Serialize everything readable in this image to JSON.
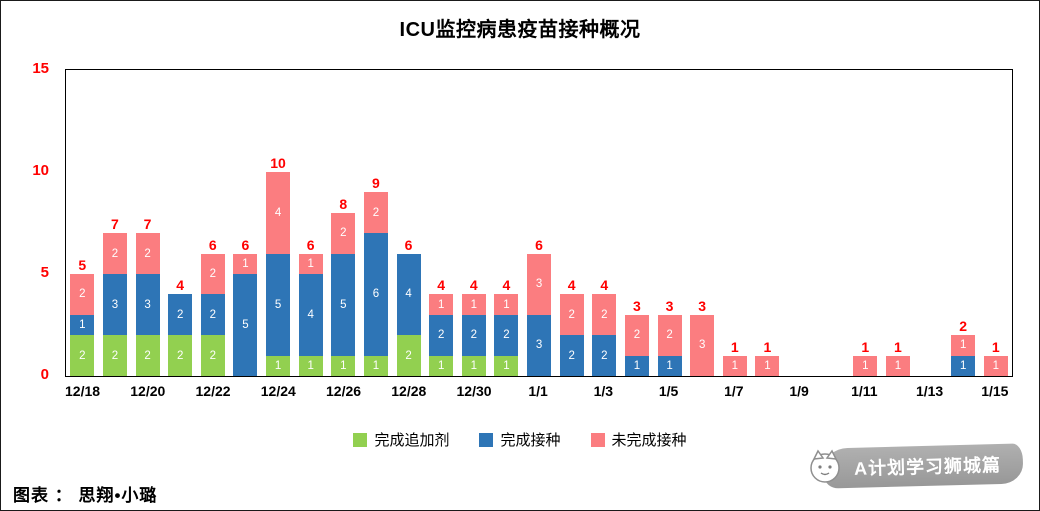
{
  "chart_data": {
    "type": "bar",
    "stacked": true,
    "title": "ICU监控病患疫苗接种概况",
    "categories": [
      "12/18",
      "12/19",
      "12/20",
      "12/21",
      "12/22",
      "12/23",
      "12/24",
      "12/25",
      "12/26",
      "12/27",
      "12/28",
      "12/29",
      "12/30",
      "12/31",
      "1/1",
      "1/2",
      "1/3",
      "1/4",
      "1/5",
      "1/6",
      "1/7",
      "1/8",
      "1/9",
      "1/10",
      "1/11",
      "1/12",
      "1/13",
      "1/14",
      "1/15"
    ],
    "x_tick_labels": [
      "12/18",
      "12/20",
      "12/22",
      "12/24",
      "12/26",
      "12/28",
      "12/30",
      "1/1",
      "1/3",
      "1/5",
      "1/7",
      "1/9",
      "1/11",
      "1/13",
      "1/15"
    ],
    "series": [
      {
        "name": "完成追加剂",
        "color": "#92D050",
        "values": [
          2,
          2,
          2,
          2,
          2,
          0,
          1,
          1,
          1,
          1,
          2,
          1,
          1,
          1,
          0,
          0,
          0,
          0,
          0,
          0,
          0,
          0,
          0,
          0,
          0,
          0,
          0,
          0,
          0
        ]
      },
      {
        "name": "完成接种",
        "color": "#2E75B6",
        "values": [
          1,
          3,
          3,
          2,
          2,
          5,
          5,
          4,
          5,
          6,
          4,
          2,
          2,
          2,
          3,
          2,
          2,
          1,
          1,
          0,
          0,
          0,
          0,
          0,
          0,
          0,
          0,
          1,
          0
        ]
      },
      {
        "name": "未完成接种",
        "color": "#FB7D80",
        "values": [
          2,
          2,
          2,
          0,
          2,
          1,
          4,
          1,
          2,
          2,
          0,
          1,
          1,
          1,
          3,
          2,
          2,
          2,
          2,
          3,
          1,
          1,
          0,
          0,
          1,
          1,
          0,
          1,
          1
        ]
      }
    ],
    "totals": [
      5,
      7,
      7,
      4,
      6,
      6,
      10,
      6,
      8,
      9,
      6,
      4,
      4,
      4,
      6,
      4,
      4,
      3,
      3,
      3,
      1,
      1,
      0,
      0,
      1,
      1,
      0,
      2,
      1
    ],
    "ylim": [
      0,
      15
    ],
    "y_ticks": [
      0,
      5,
      10,
      15
    ],
    "grid": false,
    "legend_position": "bottom",
    "total_label_color": "#FF0000",
    "axis_tick_color": "#FF0000"
  },
  "footer": {
    "caption": "图表 ： 思翔•小璐",
    "watermark": "A计划学习狮城篇"
  }
}
